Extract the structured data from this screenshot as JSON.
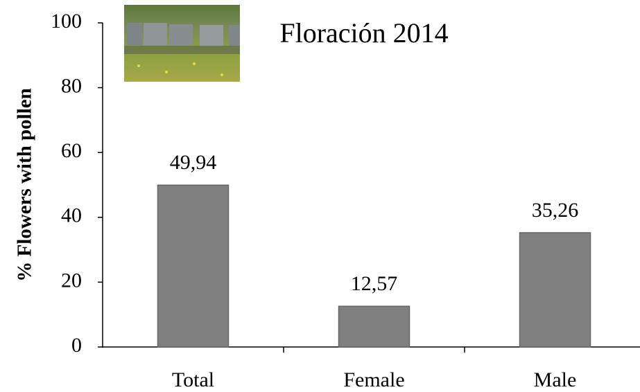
{
  "chart_data": {
    "type": "bar",
    "title": "Floración 2014",
    "y_label": "% Flowers with pollen",
    "categories": [
      "Total",
      "Female",
      "Male"
    ],
    "values": [
      49.94,
      12.57,
      35.26
    ],
    "value_labels": [
      "49,94",
      "12,57",
      "35,26"
    ],
    "color": "#808080",
    "ylim": [
      0,
      100
    ],
    "yticks": [
      0,
      20,
      40,
      60,
      80,
      100
    ],
    "grid": false
  }
}
